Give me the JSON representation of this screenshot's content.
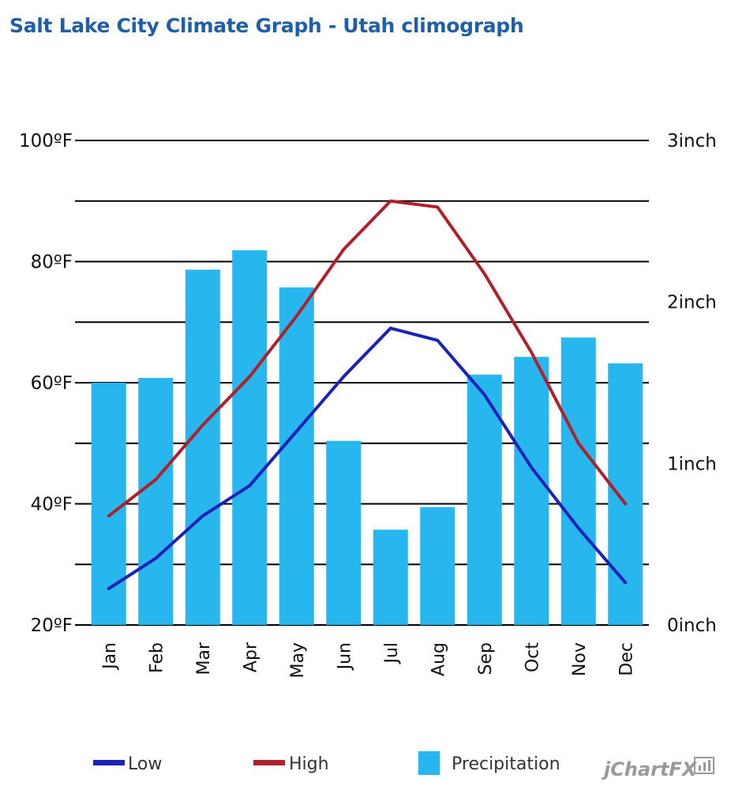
{
  "chart_data": {
    "type": "bar+line",
    "title": "Salt Lake City Climate Graph - Utah climograph",
    "categories": [
      "Jan",
      "Feb",
      "Mar",
      "Apr",
      "May",
      "Jun",
      "Jul",
      "Aug",
      "Sep",
      "Oct",
      "Nov",
      "Dec"
    ],
    "left_axis": {
      "unit": "ºF",
      "ticks": [
        "100ºF",
        "80ºF",
        "60ºF",
        "40ºF",
        "20ºF"
      ],
      "range": [
        20,
        100
      ]
    },
    "right_axis": {
      "unit": "inch",
      "ticks": [
        "3inch",
        "2inch",
        "1inch",
        "0inch"
      ],
      "range": [
        0,
        3
      ]
    },
    "series": [
      {
        "name": "Low",
        "kind": "line",
        "axis": "left",
        "color": "#1a22b8",
        "values": [
          26,
          31,
          38,
          43,
          52,
          61,
          69,
          67,
          58,
          46,
          36,
          27
        ]
      },
      {
        "name": "High",
        "kind": "line",
        "axis": "left",
        "color": "#b0202a",
        "values": [
          38,
          44,
          53,
          61,
          71,
          82,
          90,
          89,
          78,
          65,
          50,
          40
        ]
      },
      {
        "name": "Precipitation",
        "kind": "bar",
        "axis": "right",
        "color": "#27b6ee",
        "values": [
          1.5,
          1.53,
          2.2,
          2.32,
          2.09,
          1.14,
          0.59,
          0.73,
          1.55,
          1.66,
          1.78,
          1.62
        ]
      }
    ],
    "grid": true,
    "legend": "bottom"
  },
  "branding": {
    "text": "jChartFX",
    "color": "#9a9a9a"
  }
}
